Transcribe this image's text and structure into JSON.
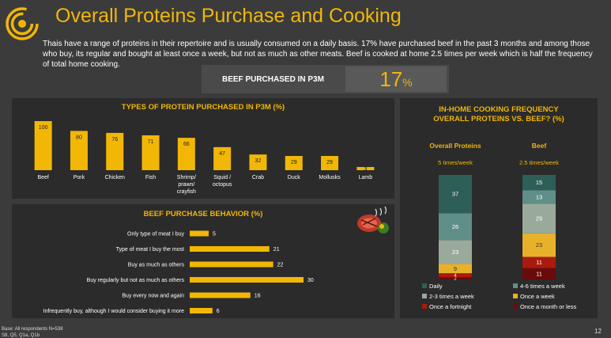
{
  "header": {
    "title": "Overall Proteins Purchase and Cooking",
    "intro": "Thais have a range of proteins in their repertoire and is usually consumed on a daily basis. 17% have purchased beef in the past 3 months and among those who buy, its regular and bought at least once a week, but not as much as other meats. Beef is cooked at home 2.5 times per week which is half the frequency of total home cooking.",
    "logo": "concentric-arcs-logo"
  },
  "kpi": {
    "label": "BEEF PURCHASED IN P3M",
    "value": "17",
    "unit": "%"
  },
  "footer": {
    "base": "Base: All respondents N=538",
    "source": "S8, Q5, Q1a, Q1b",
    "page": "12"
  },
  "colors": {
    "accent": "#f2b705",
    "background": "#3b3b3b",
    "panel": "#2b2b2b",
    "bar": "#f2b705"
  },
  "chart_data": [
    {
      "type": "bar",
      "title": "TYPES OF PROTEIN PURCHASED IN P3M (%)",
      "categories": [
        "Beef",
        "Pork",
        "Chicken",
        "Fish",
        "Shrimp/\nprawn/\ncrayfish",
        "Squid /\noctopus",
        "Crab",
        "Duck",
        "Mollusks",
        "Lamb"
      ],
      "values": [
        100,
        80,
        76,
        71,
        66,
        47,
        32,
        29,
        29,
        3
      ],
      "ylim": [
        0,
        100
      ],
      "grid": false
    },
    {
      "type": "bar",
      "orientation": "horizontal",
      "title": "BEEF PURCHASE BEHAVIOR (%)",
      "icon": "grilled-steak-icon",
      "categories": [
        "Only type of meat I buy",
        "Type of meat I buy the most",
        "Buy as much as others",
        "Buy regularly but not as much as others",
        "Buy every now and again",
        "Infrequently buy, although I would consider buying it more"
      ],
      "values": [
        5,
        21,
        22,
        30,
        16,
        6
      ],
      "xlim": [
        0,
        30
      ],
      "grid": false
    },
    {
      "type": "bar",
      "stacked": true,
      "title": "IN-HOME COOKING FREQUENCY\nOVERALL PROTEINS VS. BEEF? (%)",
      "categories": [
        "Overall Proteins",
        "Beef"
      ],
      "subtitles": [
        "5 times/week",
        "2.5 times/week"
      ],
      "series": [
        {
          "name": "Once a month or less",
          "color": "#6b0a0a",
          "values": [
            2,
            11
          ]
        },
        {
          "name": "Once a fortnight",
          "color": "#a81b0e",
          "values": [
            4,
            11
          ]
        },
        {
          "name": "Once a week",
          "color": "#e8b12a",
          "values": [
            9,
            23
          ]
        },
        {
          "name": "2-3 times a week",
          "color": "#9aaa9a",
          "values": [
            23,
            29
          ]
        },
        {
          "name": "4-6 times a week",
          "color": "#5f8f88",
          "values": [
            26,
            13
          ]
        },
        {
          "name": "Daily",
          "color": "#2e5e58",
          "values": [
            37,
            15
          ]
        }
      ],
      "legend_order": [
        "Daily",
        "4-6 times a week",
        "2-3 times a week",
        "Once a week",
        "Once a fortnight",
        "Once a month or less"
      ],
      "legend_placement": "bottom",
      "grid": false
    }
  ]
}
